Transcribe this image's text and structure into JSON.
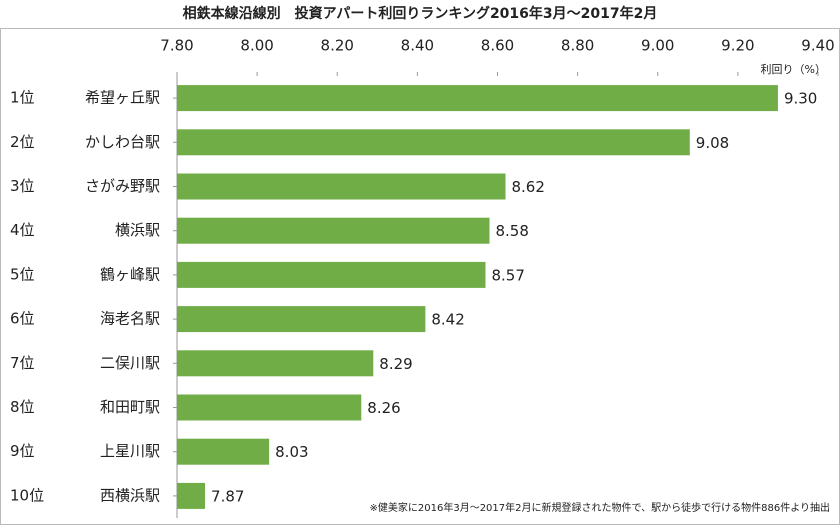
{
  "chart_data": {
    "type": "bar",
    "orientation": "horizontal",
    "title": "相鉄本線沿線別　投資アパート利回りランキング2016年3月～2017年2月",
    "axis_label": "利回り（%）",
    "ranks": [
      "1位",
      "2位",
      "3位",
      "4位",
      "5位",
      "6位",
      "7位",
      "8位",
      "9位",
      "10位"
    ],
    "categories": [
      "希望ヶ丘駅",
      "かしわ台駅",
      "さがみ野駅",
      "横浜駅",
      "鶴ヶ峰駅",
      "海老名駅",
      "二俣川駅",
      "和田町駅",
      "上星川駅",
      "西横浜駅"
    ],
    "values": [
      9.3,
      9.08,
      8.62,
      8.58,
      8.57,
      8.42,
      8.29,
      8.26,
      8.03,
      7.87
    ],
    "value_labels": [
      "9.30",
      "9.08",
      "8.62",
      "8.58",
      "8.57",
      "8.42",
      "8.29",
      "8.26",
      "8.03",
      "7.87"
    ],
    "color": "#70ad47",
    "xlim": [
      7.8,
      9.4
    ],
    "xticks": [
      {
        "value": 7.8,
        "label": "7.80"
      },
      {
        "value": 8.0,
        "label": "8.00"
      },
      {
        "value": 8.2,
        "label": "8.20"
      },
      {
        "value": 8.4,
        "label": "8.40"
      },
      {
        "value": 8.6,
        "label": "8.60"
      },
      {
        "value": 8.8,
        "label": "8.80"
      },
      {
        "value": 9.0,
        "label": "9.00"
      },
      {
        "value": 9.2,
        "label": "9.20"
      },
      {
        "value": 9.4,
        "label": "9.40"
      }
    ],
    "footnote": "※健美家に2016年3月～2017年2月に新規登録された物件で、駅から徒歩で行ける物件886件より抽出"
  }
}
